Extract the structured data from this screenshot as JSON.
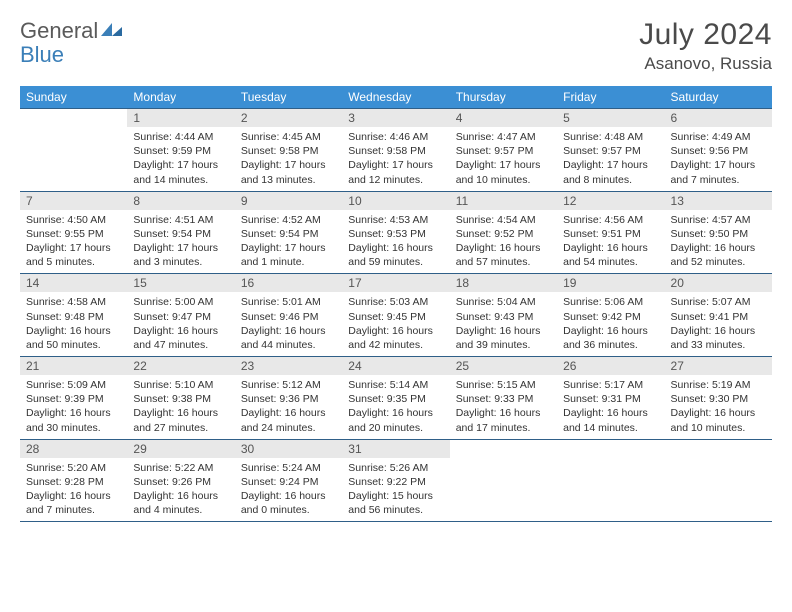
{
  "logo": {
    "word1": "General",
    "word2": "Blue"
  },
  "header": {
    "month": "July 2024",
    "location": "Asanovo, Russia"
  },
  "colors": {
    "header_bg": "#3b8fd4",
    "header_text": "#ffffff",
    "rule": "#2f5f88",
    "daynum_bg": "#e8e8e8",
    "text": "#333333",
    "logo_gray": "#5a5a5a",
    "logo_blue": "#3b7fb8",
    "page_bg": "#ffffff"
  },
  "typography": {
    "body_fontsize": 10.5,
    "header_fontsize": 12,
    "title_fontsize": 30,
    "location_fontsize": 17
  },
  "weekdays": [
    "Sunday",
    "Monday",
    "Tuesday",
    "Wednesday",
    "Thursday",
    "Friday",
    "Saturday"
  ],
  "weeks": [
    [
      null,
      {
        "d": "1",
        "sr": "Sunrise: 4:44 AM",
        "ss": "Sunset: 9:59 PM",
        "dl1": "Daylight: 17 hours",
        "dl2": "and 14 minutes."
      },
      {
        "d": "2",
        "sr": "Sunrise: 4:45 AM",
        "ss": "Sunset: 9:58 PM",
        "dl1": "Daylight: 17 hours",
        "dl2": "and 13 minutes."
      },
      {
        "d": "3",
        "sr": "Sunrise: 4:46 AM",
        "ss": "Sunset: 9:58 PM",
        "dl1": "Daylight: 17 hours",
        "dl2": "and 12 minutes."
      },
      {
        "d": "4",
        "sr": "Sunrise: 4:47 AM",
        "ss": "Sunset: 9:57 PM",
        "dl1": "Daylight: 17 hours",
        "dl2": "and 10 minutes."
      },
      {
        "d": "5",
        "sr": "Sunrise: 4:48 AM",
        "ss": "Sunset: 9:57 PM",
        "dl1": "Daylight: 17 hours",
        "dl2": "and 8 minutes."
      },
      {
        "d": "6",
        "sr": "Sunrise: 4:49 AM",
        "ss": "Sunset: 9:56 PM",
        "dl1": "Daylight: 17 hours",
        "dl2": "and 7 minutes."
      }
    ],
    [
      {
        "d": "7",
        "sr": "Sunrise: 4:50 AM",
        "ss": "Sunset: 9:55 PM",
        "dl1": "Daylight: 17 hours",
        "dl2": "and 5 minutes."
      },
      {
        "d": "8",
        "sr": "Sunrise: 4:51 AM",
        "ss": "Sunset: 9:54 PM",
        "dl1": "Daylight: 17 hours",
        "dl2": "and 3 minutes."
      },
      {
        "d": "9",
        "sr": "Sunrise: 4:52 AM",
        "ss": "Sunset: 9:54 PM",
        "dl1": "Daylight: 17 hours",
        "dl2": "and 1 minute."
      },
      {
        "d": "10",
        "sr": "Sunrise: 4:53 AM",
        "ss": "Sunset: 9:53 PM",
        "dl1": "Daylight: 16 hours",
        "dl2": "and 59 minutes."
      },
      {
        "d": "11",
        "sr": "Sunrise: 4:54 AM",
        "ss": "Sunset: 9:52 PM",
        "dl1": "Daylight: 16 hours",
        "dl2": "and 57 minutes."
      },
      {
        "d": "12",
        "sr": "Sunrise: 4:56 AM",
        "ss": "Sunset: 9:51 PM",
        "dl1": "Daylight: 16 hours",
        "dl2": "and 54 minutes."
      },
      {
        "d": "13",
        "sr": "Sunrise: 4:57 AM",
        "ss": "Sunset: 9:50 PM",
        "dl1": "Daylight: 16 hours",
        "dl2": "and 52 minutes."
      }
    ],
    [
      {
        "d": "14",
        "sr": "Sunrise: 4:58 AM",
        "ss": "Sunset: 9:48 PM",
        "dl1": "Daylight: 16 hours",
        "dl2": "and 50 minutes."
      },
      {
        "d": "15",
        "sr": "Sunrise: 5:00 AM",
        "ss": "Sunset: 9:47 PM",
        "dl1": "Daylight: 16 hours",
        "dl2": "and 47 minutes."
      },
      {
        "d": "16",
        "sr": "Sunrise: 5:01 AM",
        "ss": "Sunset: 9:46 PM",
        "dl1": "Daylight: 16 hours",
        "dl2": "and 44 minutes."
      },
      {
        "d": "17",
        "sr": "Sunrise: 5:03 AM",
        "ss": "Sunset: 9:45 PM",
        "dl1": "Daylight: 16 hours",
        "dl2": "and 42 minutes."
      },
      {
        "d": "18",
        "sr": "Sunrise: 5:04 AM",
        "ss": "Sunset: 9:43 PM",
        "dl1": "Daylight: 16 hours",
        "dl2": "and 39 minutes."
      },
      {
        "d": "19",
        "sr": "Sunrise: 5:06 AM",
        "ss": "Sunset: 9:42 PM",
        "dl1": "Daylight: 16 hours",
        "dl2": "and 36 minutes."
      },
      {
        "d": "20",
        "sr": "Sunrise: 5:07 AM",
        "ss": "Sunset: 9:41 PM",
        "dl1": "Daylight: 16 hours",
        "dl2": "and 33 minutes."
      }
    ],
    [
      {
        "d": "21",
        "sr": "Sunrise: 5:09 AM",
        "ss": "Sunset: 9:39 PM",
        "dl1": "Daylight: 16 hours",
        "dl2": "and 30 minutes."
      },
      {
        "d": "22",
        "sr": "Sunrise: 5:10 AM",
        "ss": "Sunset: 9:38 PM",
        "dl1": "Daylight: 16 hours",
        "dl2": "and 27 minutes."
      },
      {
        "d": "23",
        "sr": "Sunrise: 5:12 AM",
        "ss": "Sunset: 9:36 PM",
        "dl1": "Daylight: 16 hours",
        "dl2": "and 24 minutes."
      },
      {
        "d": "24",
        "sr": "Sunrise: 5:14 AM",
        "ss": "Sunset: 9:35 PM",
        "dl1": "Daylight: 16 hours",
        "dl2": "and 20 minutes."
      },
      {
        "d": "25",
        "sr": "Sunrise: 5:15 AM",
        "ss": "Sunset: 9:33 PM",
        "dl1": "Daylight: 16 hours",
        "dl2": "and 17 minutes."
      },
      {
        "d": "26",
        "sr": "Sunrise: 5:17 AM",
        "ss": "Sunset: 9:31 PM",
        "dl1": "Daylight: 16 hours",
        "dl2": "and 14 minutes."
      },
      {
        "d": "27",
        "sr": "Sunrise: 5:19 AM",
        "ss": "Sunset: 9:30 PM",
        "dl1": "Daylight: 16 hours",
        "dl2": "and 10 minutes."
      }
    ],
    [
      {
        "d": "28",
        "sr": "Sunrise: 5:20 AM",
        "ss": "Sunset: 9:28 PM",
        "dl1": "Daylight: 16 hours",
        "dl2": "and 7 minutes."
      },
      {
        "d": "29",
        "sr": "Sunrise: 5:22 AM",
        "ss": "Sunset: 9:26 PM",
        "dl1": "Daylight: 16 hours",
        "dl2": "and 4 minutes."
      },
      {
        "d": "30",
        "sr": "Sunrise: 5:24 AM",
        "ss": "Sunset: 9:24 PM",
        "dl1": "Daylight: 16 hours",
        "dl2": "and 0 minutes."
      },
      {
        "d": "31",
        "sr": "Sunrise: 5:26 AM",
        "ss": "Sunset: 9:22 PM",
        "dl1": "Daylight: 15 hours",
        "dl2": "and 56 minutes."
      },
      null,
      null,
      null
    ]
  ]
}
